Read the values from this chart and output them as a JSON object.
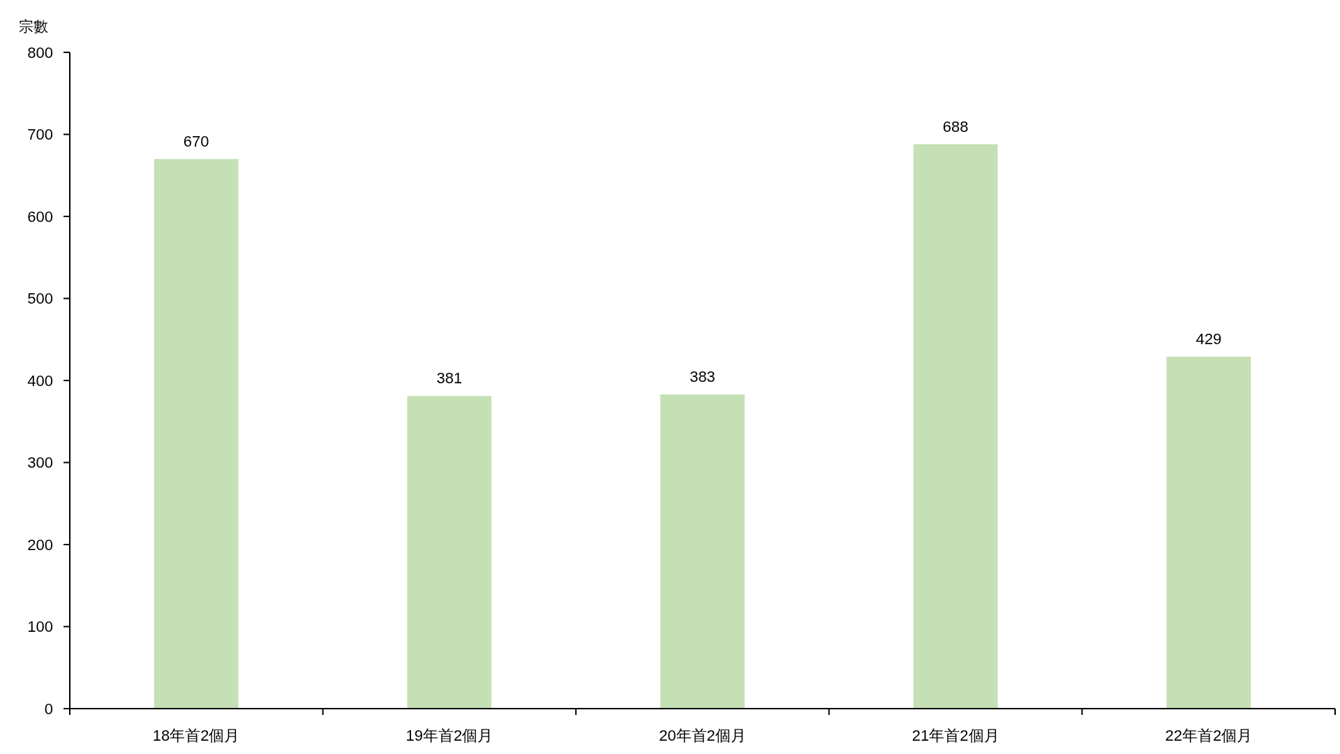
{
  "chart_data": {
    "type": "bar",
    "ylabel": "宗數",
    "categories": [
      "18年首2個月",
      "19年首2個月",
      "20年首2個月",
      "21年首2個月",
      "22年首2個月"
    ],
    "values": [
      670,
      381,
      383,
      688,
      429
    ],
    "color": "#c5e0b4",
    "ylim": [
      0,
      800
    ],
    "yticks": [
      0,
      100,
      200,
      300,
      400,
      500,
      600,
      700,
      800
    ],
    "data_labels": true
  }
}
